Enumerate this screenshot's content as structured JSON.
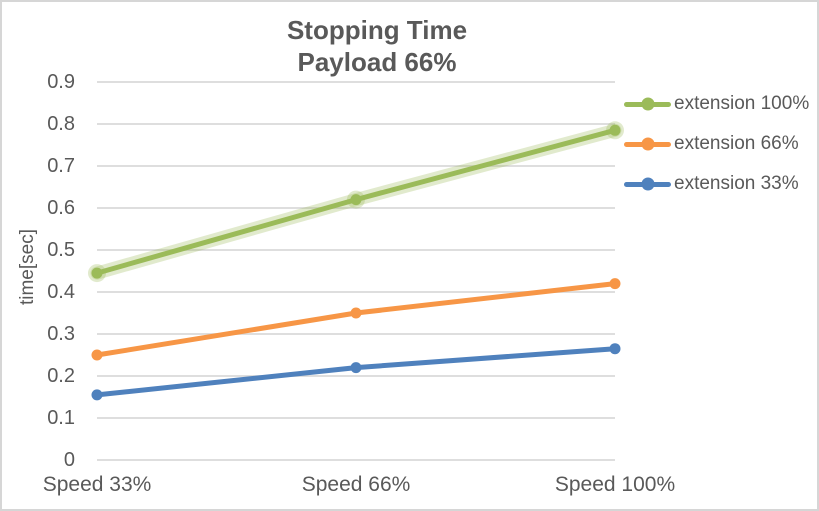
{
  "chart_data": {
    "type": "line",
    "title": "Stopping Time",
    "subtitle": "Payload 66%",
    "ylabel": "time[sec]",
    "xlabel": "",
    "categories": [
      "Speed 33%",
      "Speed 66%",
      "Speed 100%"
    ],
    "series": [
      {
        "name": "extension 100%",
        "color": "#9BBB59",
        "halo": true,
        "values": [
          0.445,
          0.62,
          0.785
        ]
      },
      {
        "name": "extension 66%",
        "color": "#F79646",
        "halo": false,
        "values": [
          0.25,
          0.35,
          0.42
        ]
      },
      {
        "name": "extension 33%",
        "color": "#4F81BD",
        "halo": false,
        "values": [
          0.155,
          0.22,
          0.265
        ]
      }
    ],
    "ylim": [
      0,
      0.9
    ],
    "ytick_step": 0.1,
    "ytick_labels": [
      "0",
      "0.1",
      "0.2",
      "0.3",
      "0.4",
      "0.5",
      "0.6",
      "0.7",
      "0.8",
      "0.9"
    ],
    "grid": true,
    "legend_position": "right",
    "colors": {
      "text": "#595959",
      "gridline": "#D9D9D9",
      "border": "#D6D6D6",
      "background": "#FFFFFF"
    }
  }
}
